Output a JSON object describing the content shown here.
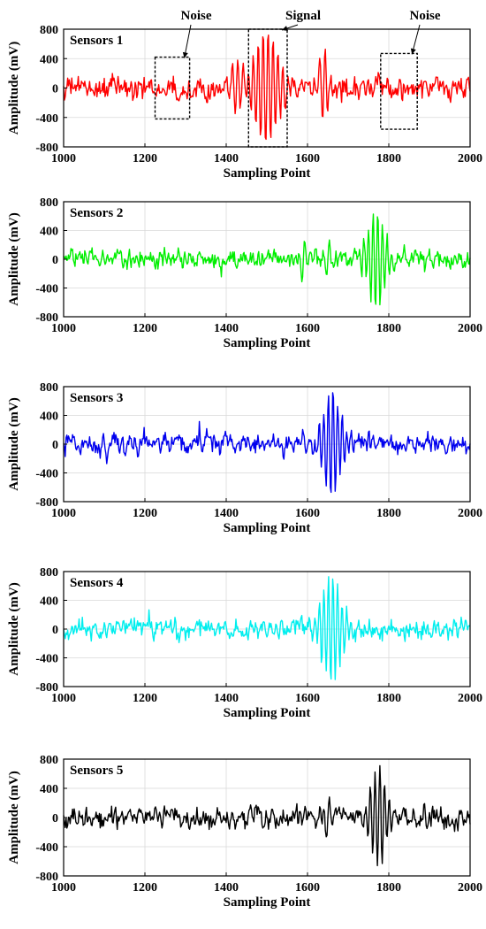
{
  "figure": {
    "annotations": [
      {
        "label": "Noise",
        "x_range": [
          1225,
          1310
        ],
        "y_range": [
          -420,
          420
        ]
      },
      {
        "label": "Signal",
        "x_range": [
          1455,
          1550
        ],
        "y_range": [
          -800,
          800
        ]
      },
      {
        "label": "Noise",
        "x_range": [
          1780,
          1870
        ],
        "y_range": [
          -560,
          470
        ]
      }
    ]
  },
  "chart_data": [
    {
      "type": "line",
      "title": "Sensors 1",
      "xlabel": "Sampling Point",
      "ylabel": "Amplitude (mV)",
      "xlim": [
        1000,
        2000
      ],
      "ylim": [
        -800,
        800
      ],
      "xticks": [
        1000,
        1200,
        1400,
        1600,
        1800,
        2000
      ],
      "yticks": [
        800,
        400,
        0,
        -400,
        -800
      ],
      "grid": true,
      "series": [
        {
          "color": "#ff0000",
          "noise_amplitude_mv": 250,
          "bursts": [
            {
              "center": 1500,
              "peak": 780,
              "duration": 110,
              "cycles": 9
            },
            {
              "center": 1640,
              "peak": 560,
              "duration": 40,
              "cycles": 3
            },
            {
              "center": 1425,
              "peak": 450,
              "duration": 40,
              "cycles": 3
            }
          ]
        }
      ]
    },
    {
      "type": "line",
      "title": "Sensors 2",
      "xlabel": "Sampling Point",
      "ylabel": "Amplitude (mV)",
      "xlim": [
        1000,
        2000
      ],
      "ylim": [
        -800,
        800
      ],
      "xticks": [
        1000,
        1200,
        1400,
        1600,
        1800,
        2000
      ],
      "yticks": [
        800,
        400,
        0,
        -400,
        -800
      ],
      "grid": true,
      "series": [
        {
          "color": "#00ee00",
          "noise_amplitude_mv": 210,
          "bursts": [
            {
              "center": 1770,
              "peak": 700,
              "duration": 80,
              "cycles": 7
            },
            {
              "center": 1590,
              "peak": 330,
              "duration": 30,
              "cycles": 2
            },
            {
              "center": 1650,
              "peak": 300,
              "duration": 30,
              "cycles": 2
            }
          ]
        }
      ]
    },
    {
      "type": "line",
      "title": "Sensors 3",
      "xlabel": "Sampling Point",
      "ylabel": "Amplitude (mV)",
      "xlim": [
        1000,
        2000
      ],
      "ylim": [
        -800,
        800
      ],
      "xticks": [
        1000,
        1200,
        1400,
        1600,
        1800,
        2000
      ],
      "yticks": [
        800,
        400,
        0,
        -400,
        -800
      ],
      "grid": true,
      "series": [
        {
          "color": "#0000ee",
          "noise_amplitude_mv": 220,
          "bursts": [
            {
              "center": 1660,
              "peak": 760,
              "duration": 80,
              "cycles": 7
            }
          ]
        }
      ]
    },
    {
      "type": "line",
      "title": "Sensors 4",
      "xlabel": "Sampling Point",
      "ylabel": "Amplitude (mV)",
      "xlim": [
        1000,
        2000
      ],
      "ylim": [
        -800,
        800
      ],
      "xticks": [
        1000,
        1200,
        1400,
        1600,
        1800,
        2000
      ],
      "yticks": [
        800,
        400,
        0,
        -400,
        -800
      ],
      "grid": true,
      "series": [
        {
          "color": "#00eeee",
          "noise_amplitude_mv": 220,
          "bursts": [
            {
              "center": 1660,
              "peak": 790,
              "duration": 90,
              "cycles": 8
            }
          ]
        }
      ]
    },
    {
      "type": "line",
      "title": "Sensors 5",
      "xlabel": "Sampling Point",
      "ylabel": "Amplitude (mV)",
      "xlim": [
        1000,
        2000
      ],
      "ylim": [
        -800,
        800
      ],
      "xticks": [
        1000,
        1200,
        1400,
        1600,
        1800,
        2000
      ],
      "yticks": [
        800,
        400,
        0,
        -400,
        -800
      ],
      "grid": true,
      "series": [
        {
          "color": "#000000",
          "noise_amplitude_mv": 230,
          "bursts": [
            {
              "center": 1775,
              "peak": 680,
              "duration": 70,
              "cycles": 6
            },
            {
              "center": 1650,
              "peak": 300,
              "duration": 30,
              "cycles": 2
            }
          ]
        }
      ]
    }
  ]
}
